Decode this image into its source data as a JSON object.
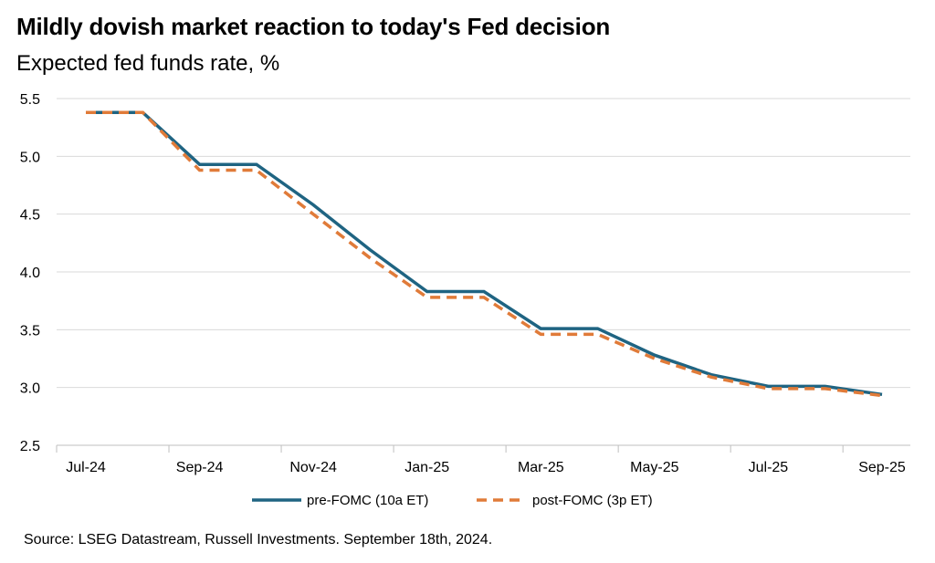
{
  "title": "Mildly dovish market reaction to today's Fed decision",
  "subtitle": "Expected fed funds rate, %",
  "source": "Source: LSEG Datastream, Russell Investments. September 18th, 2024.",
  "colors": {
    "pre": "#1f6482",
    "post": "#e07b39",
    "grid": "#d9d9d9",
    "axis": "#bfbfbf"
  },
  "chart_data": {
    "type": "line",
    "x": [
      "Jul-24",
      "Aug-24",
      "Sep-24",
      "Oct-24",
      "Nov-24",
      "Dec-24",
      "Jan-25",
      "Feb-25",
      "Mar-25",
      "Apr-25",
      "May-25",
      "Jun-25",
      "Jul-25",
      "Aug-25",
      "Sep-25"
    ],
    "x_tick_labels": [
      "Jul-24",
      "Sep-24",
      "Nov-24",
      "Jan-25",
      "Mar-25",
      "May-25",
      "Jul-25",
      "Sep-25"
    ],
    "y_tick_labels": [
      "5.5",
      "5.0",
      "4.5",
      "4.0",
      "3.5",
      "3.0",
      "2.5"
    ],
    "ylim": [
      2.5,
      5.5
    ],
    "grid": true,
    "legend": "bottom",
    "series": [
      {
        "name": "pre-FOMC (10a ET)",
        "style": "solid",
        "values": [
          5.38,
          5.38,
          4.93,
          4.93,
          4.58,
          4.19,
          3.83,
          3.83,
          3.51,
          3.51,
          3.28,
          3.11,
          3.01,
          3.01,
          2.94
        ]
      },
      {
        "name": "post-FOMC (3p ET)",
        "style": "dashed",
        "values": [
          5.38,
          5.38,
          4.88,
          4.88,
          4.5,
          4.12,
          3.78,
          3.78,
          3.46,
          3.46,
          3.25,
          3.09,
          2.99,
          2.99,
          2.93
        ]
      }
    ]
  }
}
